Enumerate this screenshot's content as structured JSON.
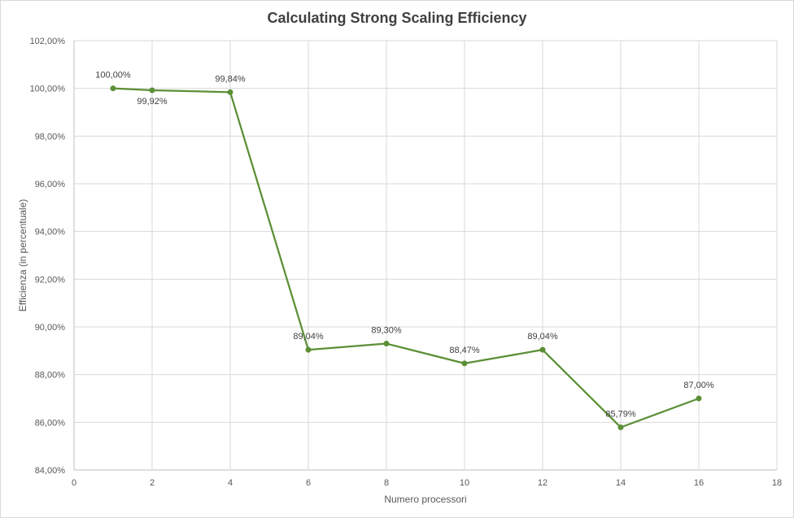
{
  "chart_data": {
    "type": "scatter",
    "title": "Calculating Strong Scaling Efficiency",
    "xlabel": "Numero processori",
    "ylabel": "Efficienza (in percentuale)",
    "xlim": [
      0,
      18
    ],
    "ylim": [
      84,
      102
    ],
    "x_ticks": [
      0,
      2,
      4,
      6,
      8,
      10,
      12,
      14,
      16,
      18
    ],
    "y_ticks": [
      84,
      86,
      88,
      90,
      92,
      94,
      96,
      98,
      100,
      102
    ],
    "y_tick_labels": [
      "84,00%",
      "86,00%",
      "88,00%",
      "90,00%",
      "92,00%",
      "94,00%",
      "96,00%",
      "98,00%",
      "100,00%",
      "102,00%"
    ],
    "grid": true,
    "lines": true,
    "series_color": "#5b8f36",
    "series": [
      {
        "x": [
          1,
          2,
          4,
          6,
          8,
          10,
          12,
          14,
          16
        ],
        "y": [
          100.0,
          99.92,
          99.84,
          89.04,
          89.3,
          88.47,
          89.04,
          85.79,
          87.0
        ],
        "labels": [
          "100,00%",
          "99,92%",
          "99,84%",
          "89,04%",
          "89,30%",
          "88,47%",
          "89,04%",
          "85,79%",
          "87,00%"
        ]
      }
    ]
  }
}
